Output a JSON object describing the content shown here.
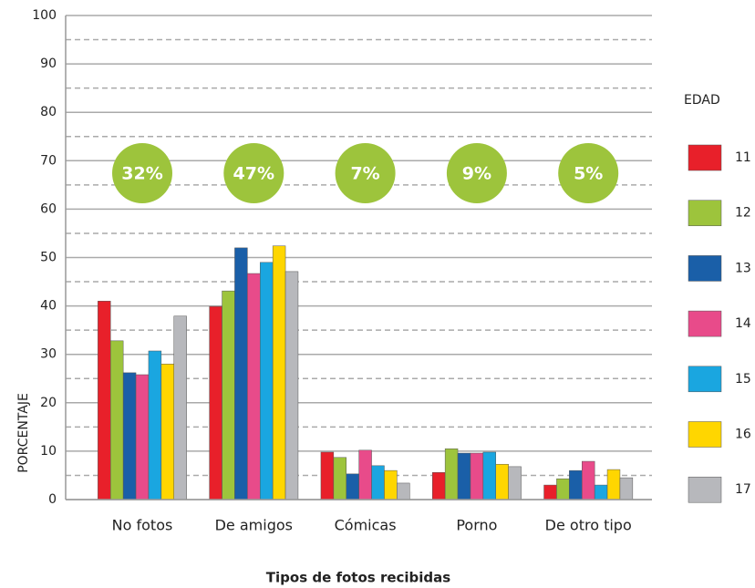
{
  "chart_data": {
    "type": "bar",
    "x_label": "Tipos de fotos recibidas",
    "y_label": "PORCENTAJE",
    "legend_title": "EDAD",
    "categories": [
      "No fotos",
      "De amigos",
      "Cómicas",
      "Porno",
      "De otro tipo"
    ],
    "annotations": [
      "32%",
      "47%",
      "7%",
      "9%",
      "5%"
    ],
    "annotation_color": "#9dc43c",
    "series": [
      {
        "name": "11",
        "color": "#e8202a",
        "values": [
          41,
          39.9,
          9.8,
          5.6,
          3
        ]
      },
      {
        "name": "12",
        "color": "#9dc43c",
        "values": [
          32.8,
          43.1,
          8.7,
          10.5,
          4.3
        ]
      },
      {
        "name": "13",
        "color": "#1a5fa8",
        "values": [
          26.2,
          52,
          5.3,
          9.6,
          6
        ]
      },
      {
        "name": "14",
        "color": "#e84b8a",
        "values": [
          25.8,
          46.7,
          10.2,
          9.6,
          7.9
        ]
      },
      {
        "name": "15",
        "color": "#1aa6e0",
        "values": [
          30.7,
          49,
          7,
          9.8,
          3
        ]
      },
      {
        "name": "16",
        "color": "#ffd600",
        "values": [
          28,
          52.4,
          6,
          7.3,
          6.2
        ]
      },
      {
        "name": "17",
        "color": "#b7b8bc",
        "values": [
          37.9,
          47.1,
          3.4,
          6.8,
          4.5
        ]
      }
    ],
    "ylim": [
      0,
      100
    ],
    "yticks": [
      0,
      10,
      20,
      30,
      40,
      50,
      60,
      70,
      80,
      90,
      100
    ],
    "minor_yticks": [
      5,
      15,
      25,
      35,
      45,
      55,
      65,
      75,
      85,
      95
    ],
    "grid": true,
    "legend": "right"
  }
}
